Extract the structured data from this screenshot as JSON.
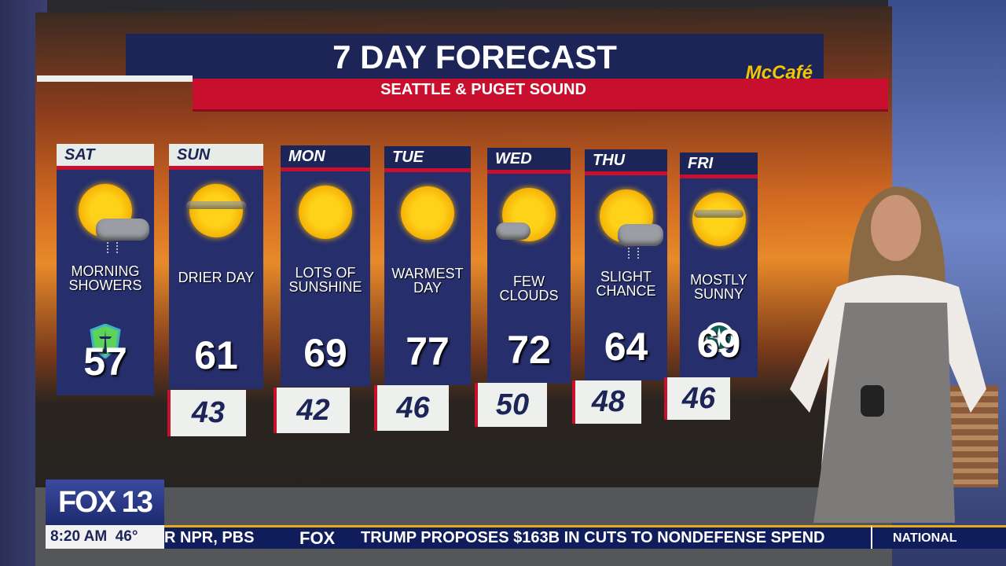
{
  "graphic": {
    "title": "7 DAY FORECAST",
    "sponsor": "McCafé",
    "subtitle": "SEATTLE & PUGET SOUND"
  },
  "days": [
    {
      "day": "SAT",
      "desc": "MORNING SHOWERS",
      "high": "57",
      "low": null,
      "icon": "sun-rain-cloud",
      "team_logo": "seattle-sounders"
    },
    {
      "day": "SUN",
      "desc": "DRIER DAY",
      "high": "61",
      "low": "43",
      "icon": "sun-haze"
    },
    {
      "day": "MON",
      "desc": "LOTS OF SUNSHINE",
      "high": "69",
      "low": "42",
      "icon": "sun"
    },
    {
      "day": "TUE",
      "desc": "WARMEST DAY",
      "high": "77",
      "low": "46",
      "icon": "sun"
    },
    {
      "day": "WED",
      "desc": "FEW CLOUDS",
      "high": "72",
      "low": "50",
      "icon": "sun-cloud"
    },
    {
      "day": "THU",
      "desc": "SLIGHT CHANCE",
      "high": "64",
      "low": "48",
      "icon": "sun-rain-cloud"
    },
    {
      "day": "FRI",
      "desc": "MOSTLY SUNNY",
      "high": "69",
      "low": "46",
      "icon": "sun-haze",
      "team_logo": "seattle-mariners"
    }
  ],
  "station": {
    "logo": "FOX 13",
    "time": "8:20 AM",
    "temp": "46°"
  },
  "ticker": {
    "left": "R NPR, PBS",
    "network": "FOX",
    "headline": "TRUMP PROPOSES $163B IN CUTS TO NONDEFENSE SPEND",
    "section": "NATIONAL"
  },
  "colors": {
    "navy": "#1c2458",
    "red": "#c8102e",
    "gold": "#e7a919"
  }
}
